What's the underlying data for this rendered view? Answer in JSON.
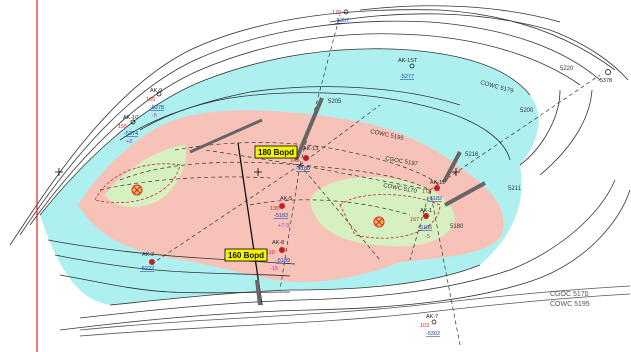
{
  "callouts": {
    "top": "180 Bopd",
    "bottom": "160 Bopd"
  },
  "legend": {
    "line1": "CGOC 5170",
    "line2": "COWC 5195"
  },
  "contact_labels": {
    "cowc": "COWC 5195",
    "cgoc": "CGOC 5197",
    "cowc_inner": "COWC 5170",
    "cowc_ne": "COWC 5179"
  },
  "contour_labels": [
    "5205",
    "5216",
    "5211",
    "5220",
    "5180",
    "5200"
  ],
  "wells": [
    {
      "name": "AK-9",
      "upper": "165",
      "depth": "-5378",
      "bottom": "-5"
    },
    {
      "name": "AK-10",
      "upper": "155",
      "depth": "-5374",
      "bottom": "+8"
    },
    {
      "name": "AK-1ST",
      "upper": "",
      "depth": "-5277",
      "bottom": ""
    },
    {
      "name": "AK-13",
      "upper": "145",
      "depth": "-5186",
      "bottom": ""
    },
    {
      "name": "AK-5",
      "upper": "135",
      "depth": "-5183",
      "bottom": "+7-3"
    },
    {
      "name": "AK-11",
      "upper": "175",
      "depth": "-5182",
      "bottom": ""
    },
    {
      "name": "AK-1",
      "upper": "167",
      "depth": "-5186",
      "bottom": "-5"
    },
    {
      "name": "AK-8",
      "upper": "119",
      "depth": "-5189",
      "bottom": "-15"
    },
    {
      "name": "AK-2",
      "upper": "",
      "depth": "-5222",
      "bottom": ""
    },
    {
      "name": "AK-7",
      "upper": "103",
      "depth": "-5302",
      "bottom": ""
    },
    {
      "name": "AK-top",
      "upper": "170",
      "depth": "-5357",
      "bottom": ""
    },
    {
      "name": "AK-ne",
      "upper": "",
      "depth": "",
      "bottom": "-5378"
    }
  ],
  "colors": {
    "oil": "#f7c3b8",
    "gas": "#d7f0c0",
    "water": "#aef0f0",
    "fault": "#000000",
    "boundary": "#e02020"
  }
}
